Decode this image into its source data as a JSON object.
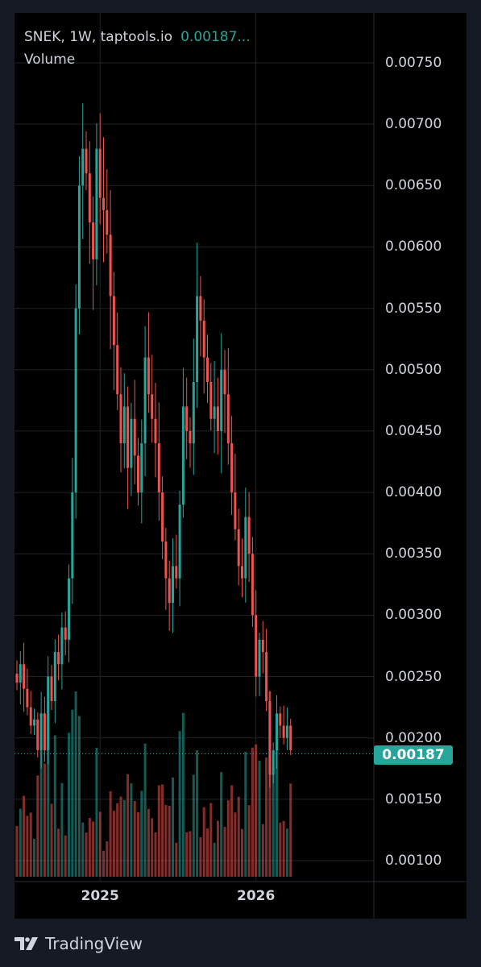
{
  "legend": {
    "symbol": "SNEK, 1W, taptools.io",
    "price": "0.00187...",
    "volume_label": "Volume"
  },
  "footer": {
    "brand": "TradingView"
  },
  "colors": {
    "up": "#26a69a",
    "down": "#ef5350",
    "background": "#000000",
    "grid": "#1f2328",
    "text": "#d1d4dc"
  },
  "chart_data": {
    "type": "candlestick",
    "interval": "1W",
    "ylim": [
      0.00085,
      0.00775
    ],
    "ytick_labels": [
      "0.00750",
      "0.00700",
      "0.00650",
      "0.00600",
      "0.00550",
      "0.00500",
      "0.00450",
      "0.00400",
      "0.00350",
      "0.00300",
      "0.00250",
      "0.00200",
      "0.00150",
      "0.00100"
    ],
    "ytick_values": [
      0.0075,
      0.007,
      0.0065,
      0.006,
      0.0055,
      0.005,
      0.0045,
      0.004,
      0.0035,
      0.003,
      0.0025,
      0.002,
      0.0015,
      0.001
    ],
    "xtick_labels": [
      "2025",
      "2026"
    ],
    "xtick_indices": [
      24,
      69
    ],
    "last_price": 0.00187,
    "last_price_label": "0.00187",
    "close": [
      0.00245,
      0.0026,
      0.0024,
      0.00225,
      0.0021,
      0.00215,
      0.0019,
      0.0022,
      0.0019,
      0.0025,
      0.0023,
      0.0027,
      0.0026,
      0.0029,
      0.0028,
      0.0033,
      0.004,
      0.0055,
      0.0065,
      0.0068,
      0.0066,
      0.0062,
      0.0059,
      0.0068,
      0.0064,
      0.0063,
      0.0061,
      0.0056,
      0.0052,
      0.0048,
      0.0044,
      0.0047,
      0.0042,
      0.0046,
      0.0043,
      0.004,
      0.0044,
      0.0051,
      0.0048,
      0.0046,
      0.0044,
      0.004,
      0.0036,
      0.0033,
      0.0031,
      0.0034,
      0.0033,
      0.0039,
      0.0047,
      0.0045,
      0.0044,
      0.0049,
      0.0056,
      0.0054,
      0.0051,
      0.0049,
      0.0046,
      0.0047,
      0.0045,
      0.005,
      0.0048,
      0.0044,
      0.004,
      0.0037,
      0.0034,
      0.0033,
      0.0038,
      0.0035,
      0.003,
      0.0025,
      0.0028,
      0.0027,
      0.0023,
      0.0017,
      0.0019,
      0.0022,
      0.0021,
      0.002,
      0.0021,
      0.0019
    ]
  }
}
